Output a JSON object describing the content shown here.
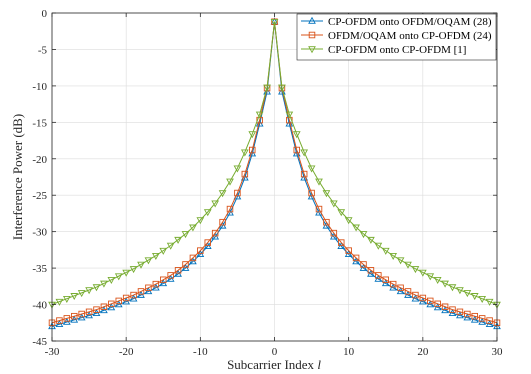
{
  "chart_data": {
    "type": "line",
    "xlabel": "Subcarrier Index",
    "xlabel_var": "l",
    "ylabel": "Interference Power (dB)",
    "xlim": [
      -30,
      30
    ],
    "ylim": [
      -45,
      0
    ],
    "xticks": [
      -30,
      -20,
      -10,
      0,
      10,
      20,
      30
    ],
    "yticks": [
      0,
      -5,
      -10,
      -15,
      -20,
      -25,
      -30,
      -35,
      -40,
      -45
    ],
    "grid": true,
    "legend_position": "top-right",
    "x": [
      -30,
      -29,
      -28,
      -27,
      -26,
      -25,
      -24,
      -23,
      -22,
      -21,
      -20,
      -19,
      -18,
      -17,
      -16,
      -15,
      -14,
      -13,
      -12,
      -11,
      -10,
      -9,
      -8,
      -7,
      -6,
      -5,
      -4,
      -3,
      -2,
      -1,
      0,
      1,
      2,
      3,
      4,
      5,
      6,
      7,
      8,
      9,
      10,
      11,
      12,
      13,
      14,
      15,
      16,
      17,
      18,
      19,
      20,
      21,
      22,
      23,
      24,
      25,
      26,
      27,
      28,
      29,
      30
    ],
    "series": [
      {
        "name": "CP-OFDM onto OFDM/OQAM (28)",
        "color": "#0072BD",
        "marker": "triangle-up",
        "values": [
          -43.0,
          -42.7,
          -42.4,
          -42.1,
          -41.8,
          -41.5,
          -41.2,
          -40.8,
          -40.4,
          -40.0,
          -39.6,
          -39.2,
          -38.7,
          -38.2,
          -37.7,
          -37.1,
          -36.5,
          -35.8,
          -35.0,
          -34.1,
          -33.1,
          -32.0,
          -30.7,
          -29.2,
          -27.4,
          -25.2,
          -22.6,
          -19.3,
          -15.2,
          -10.8,
          -1.2,
          -10.8,
          -15.2,
          -19.3,
          -22.6,
          -25.2,
          -27.4,
          -29.2,
          -30.7,
          -32.0,
          -33.1,
          -34.1,
          -35.0,
          -35.8,
          -36.5,
          -37.1,
          -37.7,
          -38.2,
          -38.7,
          -39.2,
          -39.6,
          -40.0,
          -40.4,
          -40.8,
          -41.2,
          -41.5,
          -41.8,
          -42.1,
          -42.4,
          -42.7,
          -43.0
        ]
      },
      {
        "name": "OFDM/OQAM onto CP-OFDM (24)",
        "color": "#D95319",
        "marker": "square",
        "values": [
          -42.5,
          -42.2,
          -41.9,
          -41.6,
          -41.3,
          -41.0,
          -40.7,
          -40.3,
          -39.9,
          -39.5,
          -39.1,
          -38.7,
          -38.2,
          -37.7,
          -37.2,
          -36.6,
          -36.0,
          -35.3,
          -34.5,
          -33.6,
          -32.6,
          -31.5,
          -30.2,
          -28.7,
          -26.9,
          -24.7,
          -22.1,
          -18.8,
          -14.7,
          -10.3,
          -1.2,
          -10.3,
          -14.7,
          -18.8,
          -22.1,
          -24.7,
          -26.9,
          -28.7,
          -30.2,
          -31.5,
          -32.6,
          -33.6,
          -34.5,
          -35.3,
          -36.0,
          -36.6,
          -37.2,
          -37.7,
          -38.2,
          -38.7,
          -39.1,
          -39.5,
          -39.9,
          -40.3,
          -40.7,
          -41.0,
          -41.3,
          -41.6,
          -41.9,
          -42.2,
          -42.5
        ]
      },
      {
        "name": "CP-OFDM onto CP-OFDM [1]",
        "color": "#77AC30",
        "marker": "triangle-down",
        "values": [
          -40.0,
          -39.6,
          -39.2,
          -38.8,
          -38.4,
          -38.0,
          -37.6,
          -37.1,
          -36.6,
          -36.1,
          -35.6,
          -35.1,
          -34.5,
          -33.9,
          -33.3,
          -32.6,
          -31.9,
          -31.1,
          -30.3,
          -29.4,
          -28.4,
          -27.3,
          -26.1,
          -24.7,
          -23.1,
          -21.3,
          -19.1,
          -16.6,
          -13.9,
          -10.2,
          -1.2,
          -10.2,
          -13.9,
          -16.6,
          -19.1,
          -21.3,
          -23.1,
          -24.7,
          -26.1,
          -27.3,
          -28.4,
          -29.4,
          -30.3,
          -31.1,
          -31.9,
          -32.6,
          -33.3,
          -33.9,
          -34.5,
          -35.1,
          -35.6,
          -36.1,
          -36.6,
          -37.1,
          -37.6,
          -38.0,
          -38.4,
          -38.8,
          -39.2,
          -39.6,
          -40.0
        ]
      }
    ]
  }
}
